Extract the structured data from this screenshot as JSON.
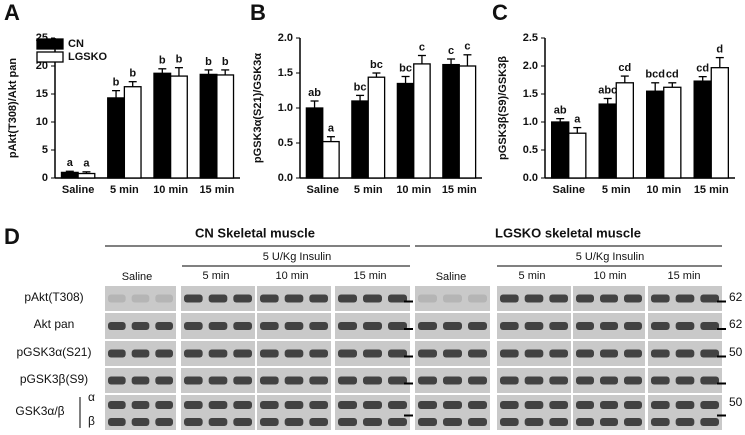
{
  "chart_data": [
    {
      "type": "bar",
      "label": "A",
      "ylabel": "pAkt(T308)/Akt pan",
      "categories": [
        "Saline",
        "5 min",
        "10 min",
        "15 min"
      ],
      "ylim": [
        0,
        25
      ],
      "yticks": [
        0,
        5,
        10,
        15,
        20,
        25
      ],
      "legend": "upper left",
      "series": [
        {
          "name": "CN",
          "color": "#000000",
          "values": [
            1.0,
            14.3,
            18.7,
            18.5
          ],
          "errors": [
            0.2,
            1.3,
            0.8,
            0.8
          ],
          "letters": [
            "a",
            "b",
            "b",
            "b"
          ]
        },
        {
          "name": "LGSKO",
          "color": "#ffffff",
          "values": [
            0.8,
            16.3,
            18.2,
            18.4
          ],
          "errors": [
            0.3,
            0.9,
            1.5,
            0.9
          ],
          "letters": [
            "a",
            "b",
            "b",
            "b"
          ]
        }
      ]
    },
    {
      "type": "bar",
      "label": "B",
      "ylabel": "pGSK3α(S21)/GSK3α",
      "categories": [
        "Saline",
        "5 min",
        "10 min",
        "15 min"
      ],
      "ylim": [
        0,
        2
      ],
      "yticks": [
        {
          "value": 0,
          "label": "0.0"
        },
        0.5,
        {
          "value": 1,
          "label": "1.0"
        },
        1.5,
        {
          "value": 2,
          "label": "2.0"
        }
      ],
      "series": [
        {
          "color": "#000000",
          "values": [
            1.0,
            1.1,
            1.35,
            1.62
          ],
          "errors": [
            0.1,
            0.08,
            0.1,
            0.08
          ],
          "letters": [
            "ab",
            "bc",
            "bc",
            "c"
          ]
        },
        {
          "color": "#ffffff",
          "values": [
            0.52,
            1.44,
            1.63,
            1.6
          ],
          "errors": [
            0.07,
            0.06,
            0.12,
            0.16
          ],
          "letters": [
            "a",
            "bc",
            "c",
            "c"
          ]
        }
      ]
    },
    {
      "type": "bar",
      "label": "C",
      "ylabel": "pGSK3β(S9)/GSK3β",
      "categories": [
        "Saline",
        "5 min",
        "10 min",
        "15 min"
      ],
      "ylim": [
        0,
        2.5
      ],
      "yticks": [
        {
          "value": 0,
          "label": "0.0"
        },
        0.5,
        {
          "value": 1,
          "label": "1.0"
        },
        1.5,
        {
          "value": 2,
          "label": "2.0"
        },
        2.5
      ],
      "series": [
        {
          "color": "#000000",
          "values": [
            1.0,
            1.32,
            1.55,
            1.73
          ],
          "errors": [
            0.06,
            0.1,
            0.15,
            0.08
          ],
          "letters": [
            "ab",
            "abc",
            "bcd",
            "cd"
          ]
        },
        {
          "color": "#ffffff",
          "values": [
            0.8,
            1.7,
            1.62,
            1.97
          ],
          "errors": [
            0.1,
            0.12,
            0.08,
            0.18
          ],
          "letters": [
            "a",
            "cd",
            "cd",
            "d"
          ]
        }
      ]
    }
  ],
  "blot": {
    "label": "D",
    "groups": [
      "CN Skeletal muscle",
      "LGSKO skeletal muscle"
    ],
    "treatment": "5 U/Kg Insulin",
    "lanes": [
      "Saline",
      "5 min",
      "10 min",
      "15 min"
    ],
    "rows": [
      "pAkt(T308)",
      "Akt pan",
      "pGSK3α(S21)",
      "pGSK3β(S9)",
      "GSK3α/β"
    ],
    "isoforms": [
      "α",
      "β"
    ],
    "markers": [
      "62",
      "62",
      "50",
      "50"
    ]
  }
}
